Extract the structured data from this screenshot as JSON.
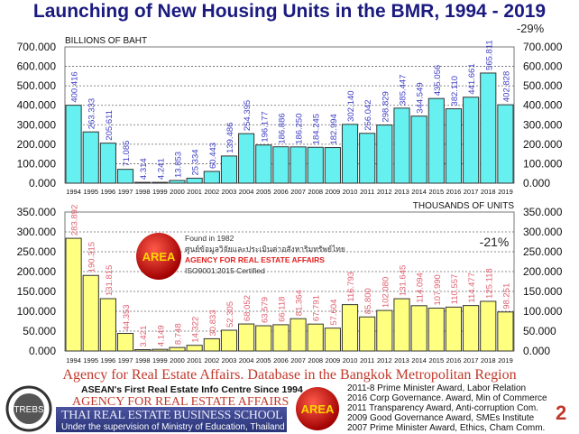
{
  "title": "Launching of New Housing Units in the BMR, 1994 - 2019",
  "chart_data": [
    {
      "type": "bar",
      "ylabel": "BILLIONS OF BAHT",
      "annotation": "-29%",
      "ylim": [
        0,
        700
      ],
      "yticks": [
        "0.000",
        "100.000",
        "200.000",
        "300.000",
        "400.000",
        "500.000",
        "600.000",
        "700.000"
      ],
      "grid": true,
      "bar_color": "#66f0f0",
      "label_color": "#4040c8",
      "categories": [
        "1994",
        "1995",
        "1996",
        "1997",
        "1998",
        "1999",
        "2000",
        "2001",
        "2002",
        "2003",
        "2004",
        "2005",
        "2006",
        "2007",
        "2008",
        "2009",
        "2010",
        "2011",
        "2012",
        "2013",
        "2014",
        "2015",
        "2016",
        "2017",
        "2018",
        "2019"
      ],
      "values": [
        400.416,
        263.333,
        205.611,
        71.085,
        4.314,
        4.241,
        13.853,
        25.334,
        60.443,
        139.486,
        254.395,
        196.177,
        186.886,
        186.25,
        184.245,
        182.994,
        302.14,
        256.042,
        298.829,
        385.447,
        344.549,
        435.056,
        382.11,
        441.661,
        565.811,
        402.828
      ],
      "labels": [
        "400.416",
        "263.333",
        "205.611",
        "71.085",
        "4.314",
        "4.241",
        "13.853",
        "25.334",
        "60.443",
        "139.486",
        "254.395",
        "196.177",
        "186.886",
        "186.250",
        "184.245",
        "182.994",
        "302.140",
        "256.042",
        "298.829",
        "385.447",
        "344.549",
        "435.056",
        "382.110",
        "441.661",
        "565.811",
        "402.828"
      ]
    },
    {
      "type": "bar",
      "ylabel": "THOUSANDS OF UNITS",
      "annotation": "-21%",
      "ylim": [
        0,
        350
      ],
      "yticks": [
        "0.000",
        "50.000",
        "100.000",
        "150.000",
        "200.000",
        "250.000",
        "300.000",
        "350.000"
      ],
      "grid": true,
      "bar_color": "#ffff80",
      "label_color": "#e06070",
      "categories": [
        "1994",
        "1995",
        "1996",
        "1997",
        "1998",
        "1999",
        "2000",
        "2001",
        "2002",
        "2003",
        "2004",
        "2005",
        "2006",
        "2007",
        "2008",
        "2009",
        "2010",
        "2011",
        "2012",
        "2013",
        "2014",
        "2015",
        "2016",
        "2017",
        "2018",
        "2019"
      ],
      "values": [
        283.892,
        190.315,
        131.815,
        44.353,
        3.421,
        4.149,
        8.748,
        14.322,
        30.833,
        52.305,
        68.052,
        63.579,
        66.118,
        81.364,
        67.791,
        57.604,
        116.793,
        85.8,
        102.08,
        131.645,
        114.094,
        107.99,
        110.557,
        114.477,
        125.118,
        98.251
      ],
      "labels": [
        "283.892",
        "190.315",
        "131.815",
        "44.353",
        "3.421",
        "4.149",
        "8.748",
        "14.322",
        "30.833",
        "52.305",
        "68.052",
        "63.579",
        "66.118",
        "81.364",
        "67.791",
        "57.604",
        "116.793",
        "85.800",
        "102.080",
        "131.645",
        "114.094",
        "107.990",
        "110.557",
        "114.477",
        "125.118",
        "98.251"
      ]
    }
  ],
  "overlay_logo": {
    "logo_text": "AREA",
    "founded": "Found in 1982",
    "thai_name": "ศูนย์ข้อมูลวิจัยและประเมินค่าอสังหาริมทรัพย์ไทย",
    "name": "AGENCY FOR REAL ESTATE AFFAIRS",
    "iso": "ISO9001:2015 Certified"
  },
  "source": "Agency for Real Estate Affairs. Database in the Bangkok Metropolitan Region",
  "footer": {
    "trebs_logo": "TREBS",
    "tagline": "ASEAN's First Real Estate Info Centre Since 1994",
    "agency": "AGENCY FOR REAL ESTATE AFFAIRS",
    "school": "THAI REAL ESTATE BUSINESS SCHOOL",
    "supervision": "Under the supervision of Ministry of Education, Thailand",
    "area_logo": "AREA",
    "awards": [
      "2011-8 Prime Minister Award, Labor Relation",
      "2016 Corp Governance. Award, Min of Commerce",
      "2011 Transparency Award, Anti-corruption Com.",
      "2009 Good Governance Award, SMEs Institute",
      "2007 Prime Minister Award, Ethics, Cham Comm."
    ],
    "page_number": "2"
  }
}
